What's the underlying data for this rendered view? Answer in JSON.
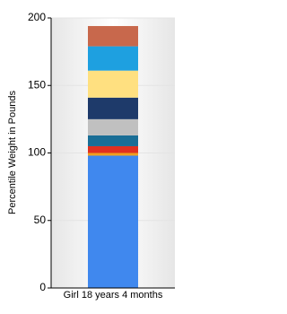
{
  "chart_data": {
    "type": "stacked_bar",
    "y_axis_label": "Percentile Weight in Pounds",
    "categories": [
      "Girl 18 years 4 months"
    ],
    "series": [
      {
        "color": "#4088ee",
        "values": [
          98
        ]
      },
      {
        "color": "#f0a020",
        "values": [
          2
        ]
      },
      {
        "color": "#e03020",
        "values": [
          5
        ]
      },
      {
        "color": "#1a6e96",
        "values": [
          8
        ]
      },
      {
        "color": "#c0c0c0",
        "values": [
          12
        ]
      },
      {
        "color": "#1e3a6a",
        "values": [
          16
        ]
      },
      {
        "color": "#ffe080",
        "values": [
          20
        ]
      },
      {
        "color": "#1ea0e0",
        "values": [
          18
        ]
      },
      {
        "color": "#c8684c",
        "values": [
          15
        ]
      }
    ],
    "ylim": [
      0,
      200
    ],
    "yticks": [
      0,
      50,
      100,
      150,
      200
    ],
    "grid": true
  }
}
